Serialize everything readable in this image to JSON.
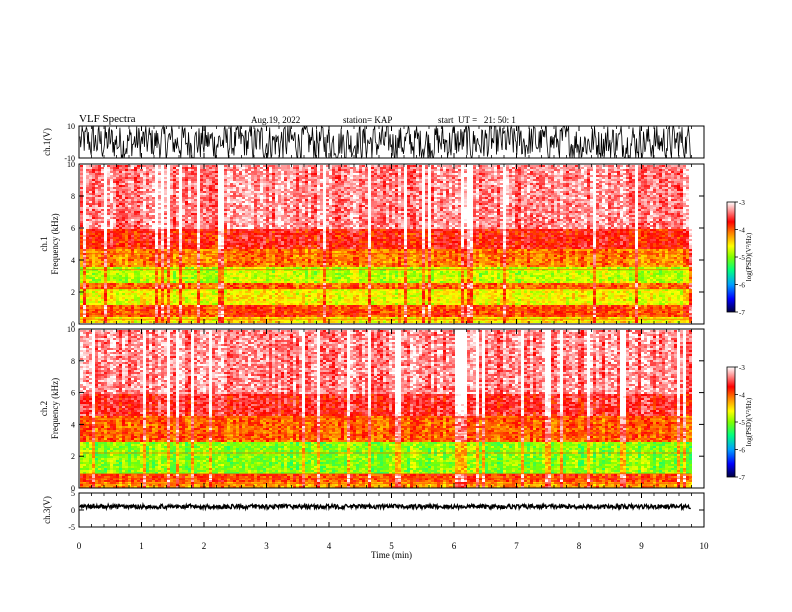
{
  "header": {
    "title": "VLF Spectra",
    "date": "Aug.19, 2022",
    "station": "station= KAP",
    "start": "start  UT =   21: 50: 1"
  },
  "chart_data": [
    {
      "type": "line",
      "panel": "ch1-waveform",
      "ylabel": "ch.1(V)",
      "ylim": [
        -10,
        10
      ],
      "yticks": [
        "10",
        "-10"
      ],
      "xlim": [
        0,
        10
      ],
      "description_note": ""
    },
    {
      "type": "heatmap",
      "panel": "ch1-spectrogram",
      "ylabel_line1": "ch.1",
      "ylabel_line2": "Frequency  (kHz)",
      "ylim": [
        0,
        10
      ],
      "yticks": [
        "0",
        "2",
        "4",
        "6",
        "8",
        "10"
      ],
      "xlim": [
        0,
        10
      ],
      "bands": [
        {
          "from": 0.0,
          "to": 0.5,
          "level": -4.5
        },
        {
          "from": 0.5,
          "to": 1.2,
          "level": -3.9
        },
        {
          "from": 1.2,
          "to": 2.2,
          "level": -4.6
        },
        {
          "from": 2.2,
          "to": 2.6,
          "level": -4.0
        },
        {
          "from": 2.6,
          "to": 3.6,
          "level": -4.8
        },
        {
          "from": 3.6,
          "to": 4.7,
          "level": -4.1
        },
        {
          "from": 4.7,
          "to": 6.0,
          "level": -3.7
        },
        {
          "from": 6.0,
          "to": 10.0,
          "level": -3.3
        }
      ],
      "colorbar": {
        "label": "log(PSD)(V²/Hz)",
        "ticks": [
          "-3",
          "-4",
          "-5",
          "-6",
          "-7"
        ],
        "range": [
          -7,
          -3
        ]
      }
    },
    {
      "type": "heatmap",
      "panel": "ch2-spectrogram",
      "ylabel_line1": "ch.2",
      "ylabel_line2": "Frequency  (kHz)",
      "ylim": [
        0,
        10
      ],
      "yticks": [
        "0",
        "2",
        "4",
        "6",
        "8",
        "10"
      ],
      "xlim": [
        0,
        10
      ],
      "bands": [
        {
          "from": 0.0,
          "to": 0.4,
          "level": -4.2
        },
        {
          "from": 0.4,
          "to": 1.0,
          "level": -3.9
        },
        {
          "from": 1.0,
          "to": 3.0,
          "level": -5.0
        },
        {
          "from": 3.0,
          "to": 4.6,
          "level": -4.0
        },
        {
          "from": 4.6,
          "to": 6.0,
          "level": -3.6
        },
        {
          "from": 6.0,
          "to": 10.0,
          "level": -3.3
        }
      ],
      "colorbar": {
        "label": "log(PSD)(V²/Hz)",
        "ticks": [
          "-3",
          "-4",
          "-5",
          "-6",
          "-7"
        ],
        "range": [
          -7,
          -3
        ]
      }
    },
    {
      "type": "line",
      "panel": "ch3-waveform",
      "ylabel": "ch.3(V)",
      "ylim": [
        -5,
        5
      ],
      "yticks": [
        "5",
        "0",
        "-5"
      ],
      "xlim": [
        0,
        10
      ],
      "xlabel": "Time  (min)",
      "xticks": [
        "0",
        "1",
        "2",
        "3",
        "4",
        "5",
        "6",
        "7",
        "8",
        "9",
        "10"
      ]
    }
  ],
  "colors": {
    "axis": "#000000",
    "colormap": [
      "#000040",
      "#0000ff",
      "#00c0ff",
      "#00ff60",
      "#c0ff00",
      "#ffff00",
      "#ff8000",
      "#ff0000",
      "#ff8080",
      "#ffffff"
    ]
  }
}
